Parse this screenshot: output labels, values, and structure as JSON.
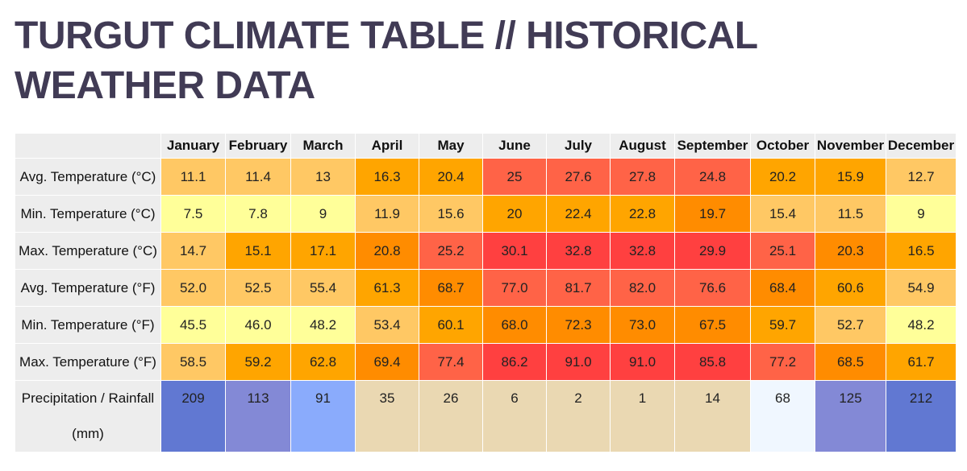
{
  "page": {
    "title": "TURGUT CLIMATE TABLE // HISTORICAL WEATHER DATA"
  },
  "table": {
    "corner": "",
    "months": [
      "January",
      "February",
      "March",
      "April",
      "May",
      "June",
      "July",
      "August",
      "September",
      "October",
      "November",
      "December"
    ],
    "rows": [
      {
        "label": "Avg. Temperature (°C)",
        "values": [
          "11.1",
          "11.4",
          "13",
          "16.3",
          "20.4",
          "25",
          "27.6",
          "27.8",
          "24.8",
          "20.2",
          "15.9",
          "12.7"
        ],
        "colors": [
          "#ffc864",
          "#ffc864",
          "#ffc864",
          "#ffa500",
          "#ffa500",
          "#ff6347",
          "#ff6347",
          "#ff6347",
          "#ff6347",
          "#ffa500",
          "#ffa500",
          "#ffc864"
        ]
      },
      {
        "label": "Min. Temperature (°C)",
        "values": [
          "7.5",
          "7.8",
          "9",
          "11.9",
          "15.6",
          "20",
          "22.4",
          "22.8",
          "19.7",
          "15.4",
          "11.5",
          "9"
        ],
        "colors": [
          "#ffff99",
          "#ffff99",
          "#ffff99",
          "#ffc864",
          "#ffc864",
          "#ffa500",
          "#ffa500",
          "#ffa500",
          "#ff8c00",
          "#ffc864",
          "#ffc864",
          "#ffff99"
        ]
      },
      {
        "label": "Max. Temperature (°C)",
        "values": [
          "14.7",
          "15.1",
          "17.1",
          "20.8",
          "25.2",
          "30.1",
          "32.8",
          "32.8",
          "29.9",
          "25.1",
          "20.3",
          "16.5"
        ],
        "colors": [
          "#ffc864",
          "#ffa500",
          "#ffa500",
          "#ff8c00",
          "#ff6347",
          "#ff4040",
          "#ff4040",
          "#ff4040",
          "#ff4040",
          "#ff6347",
          "#ff8c00",
          "#ffa500"
        ]
      },
      {
        "label": "Avg. Temperature (°F)",
        "values": [
          "52.0",
          "52.5",
          "55.4",
          "61.3",
          "68.7",
          "77.0",
          "81.7",
          "82.0",
          "76.6",
          "68.4",
          "60.6",
          "54.9"
        ],
        "colors": [
          "#ffc864",
          "#ffc864",
          "#ffc864",
          "#ffa500",
          "#ff8c00",
          "#ff6347",
          "#ff6347",
          "#ff6347",
          "#ff6347",
          "#ff8c00",
          "#ffa500",
          "#ffc864"
        ]
      },
      {
        "label": "Min. Temperature (°F)",
        "values": [
          "45.5",
          "46.0",
          "48.2",
          "53.4",
          "60.1",
          "68.0",
          "72.3",
          "73.0",
          "67.5",
          "59.7",
          "52.7",
          "48.2"
        ],
        "colors": [
          "#ffff99",
          "#ffff99",
          "#ffff99",
          "#ffc864",
          "#ffa500",
          "#ff8c00",
          "#ff8c00",
          "#ff8c00",
          "#ff8c00",
          "#ffa500",
          "#ffc864",
          "#ffff99"
        ]
      },
      {
        "label": "Max. Temperature (°F)",
        "values": [
          "58.5",
          "59.2",
          "62.8",
          "69.4",
          "77.4",
          "86.2",
          "91.0",
          "91.0",
          "85.8",
          "77.2",
          "68.5",
          "61.7"
        ],
        "colors": [
          "#ffc864",
          "#ffa500",
          "#ffa500",
          "#ff8c00",
          "#ff6347",
          "#ff4040",
          "#ff4040",
          "#ff4040",
          "#ff4040",
          "#ff6347",
          "#ff8c00",
          "#ffa500"
        ]
      },
      {
        "label": "Precipitation / Rainfall (mm)",
        "values": [
          "209",
          "113",
          "91",
          "35",
          "26",
          "6",
          "2",
          "1",
          "14",
          "68",
          "125",
          "212"
        ],
        "colors": [
          "#6178d2",
          "#8389d6",
          "#8aabfc",
          "#ead8b2",
          "#ead8b2",
          "#ead8b2",
          "#ead8b2",
          "#ead8b2",
          "#ead8b2",
          "#f0f7ff",
          "#8389d6",
          "#6178d2"
        ],
        "precip": true
      }
    ]
  }
}
